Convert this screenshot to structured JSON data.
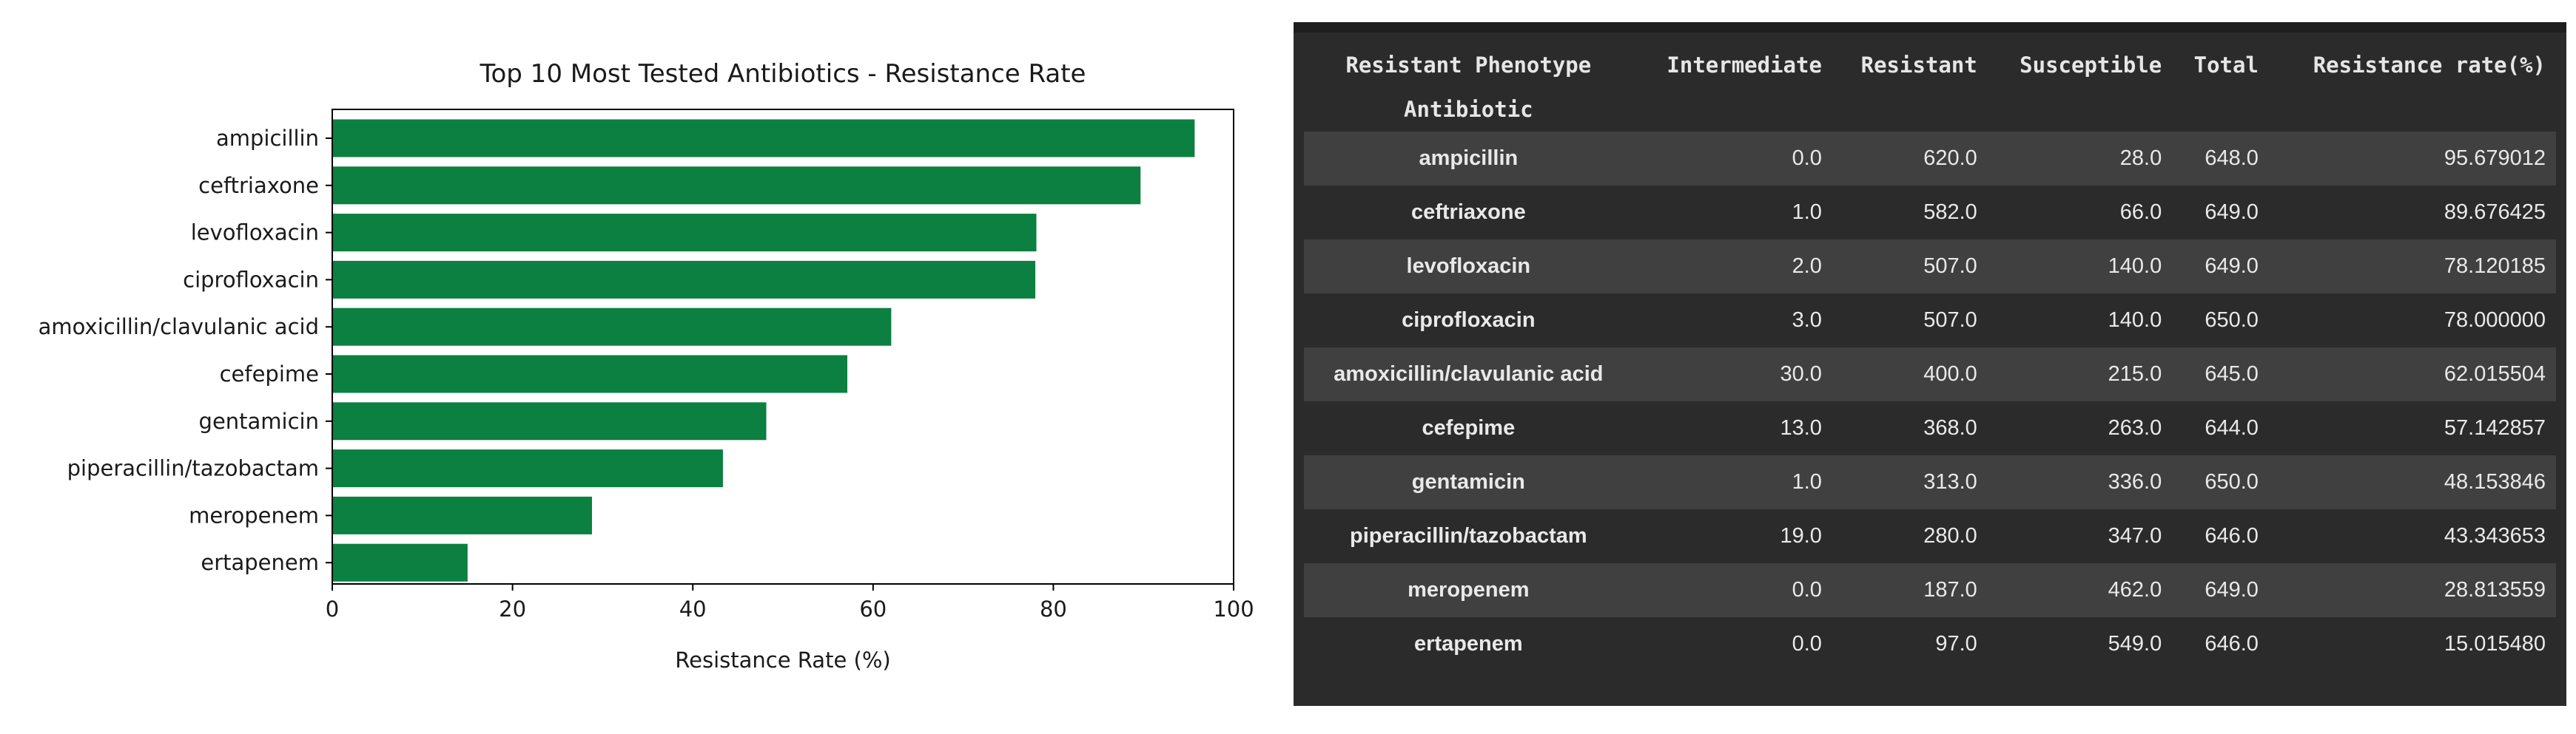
{
  "chart_data": {
    "type": "bar",
    "orientation": "horizontal",
    "title": "Top 10 Most Tested Antibiotics - Resistance Rate",
    "xlabel": "Resistance Rate (%)",
    "ylabel": "",
    "xlim": [
      0,
      100
    ],
    "xticks": [
      0,
      20,
      40,
      60,
      80,
      100
    ],
    "categories": [
      "ampicillin",
      "ceftriaxone",
      "levofloxacin",
      "ciprofloxacin",
      "amoxicillin/clavulanic acid",
      "cefepime",
      "gentamicin",
      "piperacillin/tazobactam",
      "meropenem",
      "ertapenem"
    ],
    "values": [
      95.679012,
      89.676425,
      78.120185,
      78.0,
      62.015504,
      57.142857,
      48.153846,
      43.343653,
      28.813559,
      15.01548
    ],
    "bar_color": "#0b8040",
    "grid": false
  },
  "table": {
    "columns_label": "Resistant Phenotype",
    "index_label": "Antibiotic",
    "columns": [
      "Intermediate",
      "Resistant",
      "Susceptible",
      "Total",
      "Resistance rate(%)"
    ],
    "rows": [
      {
        "antibiotic": "ampicillin",
        "cells": [
          "0.0",
          "620.0",
          "28.0",
          "648.0",
          "95.679012"
        ]
      },
      {
        "antibiotic": "ceftriaxone",
        "cells": [
          "1.0",
          "582.0",
          "66.0",
          "649.0",
          "89.676425"
        ]
      },
      {
        "antibiotic": "levofloxacin",
        "cells": [
          "2.0",
          "507.0",
          "140.0",
          "649.0",
          "78.120185"
        ]
      },
      {
        "antibiotic": "ciprofloxacin",
        "cells": [
          "3.0",
          "507.0",
          "140.0",
          "650.0",
          "78.000000"
        ]
      },
      {
        "antibiotic": "amoxicillin/clavulanic acid",
        "cells": [
          "30.0",
          "400.0",
          "215.0",
          "645.0",
          "62.015504"
        ]
      },
      {
        "antibiotic": "cefepime",
        "cells": [
          "13.0",
          "368.0",
          "263.0",
          "644.0",
          "57.142857"
        ]
      },
      {
        "antibiotic": "gentamicin",
        "cells": [
          "1.0",
          "313.0",
          "336.0",
          "650.0",
          "48.153846"
        ]
      },
      {
        "antibiotic": "piperacillin/tazobactam",
        "cells": [
          "19.0",
          "280.0",
          "347.0",
          "646.0",
          "43.343653"
        ]
      },
      {
        "antibiotic": "meropenem",
        "cells": [
          "0.0",
          "187.0",
          "462.0",
          "649.0",
          "28.813559"
        ]
      },
      {
        "antibiotic": "ertapenem",
        "cells": [
          "0.0",
          "97.0",
          "549.0",
          "646.0",
          "15.015480"
        ]
      }
    ]
  }
}
